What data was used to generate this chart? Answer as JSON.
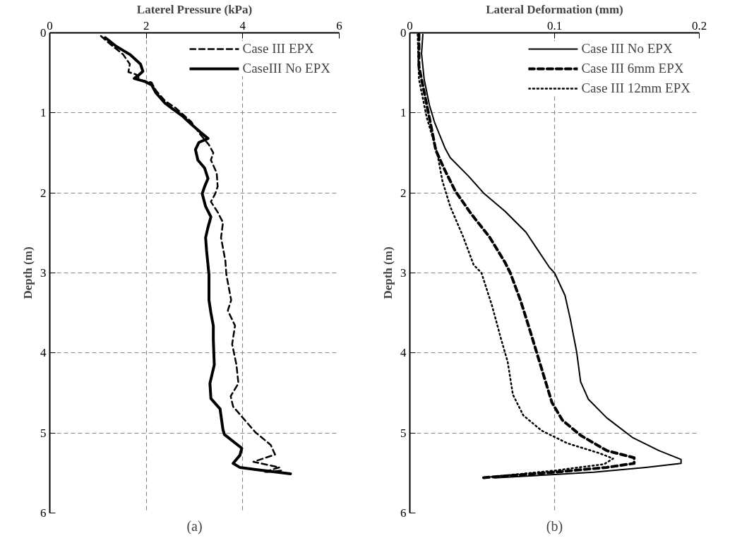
{
  "chart_data": [
    {
      "type": "line",
      "xlabel": "Laterel Pressure (kPa)",
      "ylabel": "Depth (m)",
      "xlim": [
        0,
        6
      ],
      "xticks": [
        0,
        2,
        4,
        6
      ],
      "ylim": [
        6,
        0
      ],
      "yticks": [
        0,
        1,
        2,
        3,
        4,
        5,
        6
      ],
      "grid": true,
      "legend": "top right",
      "annotations": [
        "(a)"
      ],
      "series": [
        {
          "name": "Case III EPX",
          "color": "#000000",
          "line_style": "dashed",
          "x": [
            1.06,
            1.25,
            1.52,
            1.66,
            1.63,
            1.79,
            1.88,
            2.11,
            2.2,
            2.39,
            2.61,
            2.93,
            3.12,
            3.3,
            3.39,
            3.34,
            3.46,
            3.48,
            3.43,
            3.34,
            3.48,
            3.59,
            3.55,
            3.64,
            3.66,
            3.76,
            3.69,
            3.84,
            3.78,
            3.87,
            3.91,
            3.75,
            3.8,
            4.03,
            4.26,
            4.58,
            4.67,
            4.22,
            4.76,
            4.44,
            4.8
          ],
          "values": [
            0.04,
            0.14,
            0.27,
            0.39,
            0.49,
            0.52,
            0.59,
            0.62,
            0.72,
            0.85,
            0.94,
            1.11,
            1.27,
            1.4,
            1.5,
            1.59,
            1.75,
            1.92,
            2.01,
            2.11,
            2.24,
            2.37,
            2.56,
            2.85,
            3.02,
            3.34,
            3.47,
            3.66,
            3.89,
            4.15,
            4.38,
            4.54,
            4.67,
            4.83,
            4.99,
            5.15,
            5.27,
            5.36,
            5.43,
            5.49,
            5.47
          ]
        },
        {
          "name": "CaseIII No EPX",
          "color": "#000000",
          "line_style": "solid",
          "x": [
            1.15,
            1.38,
            1.66,
            1.88,
            1.93,
            1.82,
            1.75,
            1.98,
            2.11,
            2.2,
            2.39,
            2.57,
            2.75,
            2.93,
            3.12,
            3.28,
            3.09,
            3.02,
            3.07,
            3.21,
            3.28,
            3.21,
            3.16,
            3.23,
            3.34,
            3.28,
            3.23,
            3.25,
            3.3,
            3.3,
            3.34,
            3.39,
            3.39,
            3.41,
            3.32,
            3.34,
            3.53,
            3.59,
            3.62,
            3.98,
            3.94,
            3.8,
            3.94,
            4.3,
            4.99
          ],
          "values": [
            0.06,
            0.17,
            0.27,
            0.39,
            0.48,
            0.54,
            0.57,
            0.61,
            0.65,
            0.75,
            0.88,
            0.96,
            1.04,
            1.14,
            1.24,
            1.32,
            1.37,
            1.46,
            1.59,
            1.69,
            1.82,
            1.92,
            2.01,
            2.17,
            2.3,
            2.43,
            2.56,
            2.72,
            3.02,
            3.34,
            3.5,
            3.66,
            3.83,
            4.15,
            4.38,
            4.57,
            4.7,
            4.96,
            5.02,
            5.19,
            5.28,
            5.38,
            5.43,
            5.46,
            5.51
          ]
        }
      ]
    },
    {
      "type": "line",
      "xlabel": "Lateral Deformation (mm)",
      "ylabel": "Depth (m)",
      "xlim": [
        0,
        0.2
      ],
      "xticks": [
        0,
        0.1,
        0.2
      ],
      "ylim": [
        6,
        0
      ],
      "yticks": [
        0,
        1,
        2,
        3,
        4,
        5,
        6
      ],
      "grid": true,
      "legend": "top right",
      "annotations": [
        "(b)"
      ],
      "series": [
        {
          "name": "Case III No EPX",
          "color": "#000000",
          "line_style": "solid",
          "x": [
            0.009,
            0.0081,
            0.0099,
            0.0135,
            0.0171,
            0.0243,
            0.0279,
            0.0405,
            0.0514,
            0.0658,
            0.0802,
            0.0964,
            0.1,
            0.1072,
            0.1108,
            0.1153,
            0.118,
            0.1234,
            0.136,
            0.1541,
            0.1721,
            0.1874,
            0.1874,
            0.1631,
            0.127,
            0.1,
            0.0586
          ],
          "values": [
            0.02,
            0.26,
            0.58,
            0.9,
            1.12,
            1.44,
            1.56,
            1.79,
            2.01,
            2.23,
            2.49,
            2.93,
            3.0,
            3.28,
            3.57,
            3.99,
            4.36,
            4.58,
            4.81,
            5.06,
            5.22,
            5.33,
            5.38,
            5.43,
            5.49,
            5.52,
            5.56
          ]
        },
        {
          "name": "Case III 6mm EPX",
          "color": "#000000",
          "line_style": "dashed",
          "x": [
            0.0063,
            0.0063,
            0.0099,
            0.0135,
            0.018,
            0.0243,
            0.0315,
            0.0423,
            0.055,
            0.0658,
            0.0694,
            0.0766,
            0.082,
            0.0874,
            0.0928,
            0.0982,
            0.1054,
            0.118,
            0.136,
            0.155,
            0.155,
            0.136,
            0.1,
            0.0495
          ],
          "values": [
            0.02,
            0.42,
            0.74,
            1.06,
            1.47,
            1.72,
            1.98,
            2.26,
            2.55,
            2.87,
            3.0,
            3.35,
            3.66,
            3.98,
            4.3,
            4.62,
            4.84,
            5.03,
            5.22,
            5.31,
            5.38,
            5.43,
            5.49,
            5.56
          ]
        },
        {
          "name": "Case III 12mm EPX",
          "color": "#000000",
          "line_style": "dotted",
          "x": [
            0.0054,
            0.0063,
            0.0117,
            0.0189,
            0.0225,
            0.0279,
            0.0369,
            0.0441,
            0.0495,
            0.0568,
            0.0631,
            0.0676,
            0.0712,
            0.0784,
            0.091,
            0.109,
            0.1306,
            0.1405,
            0.1342,
            0.1,
            0.0495
          ],
          "values": [
            0.02,
            0.58,
            1.06,
            1.5,
            1.85,
            2.17,
            2.55,
            2.9,
            3.0,
            3.41,
            3.83,
            4.11,
            4.52,
            4.78,
            4.97,
            5.13,
            5.25,
            5.32,
            5.39,
            5.47,
            5.56
          ]
        }
      ]
    }
  ]
}
